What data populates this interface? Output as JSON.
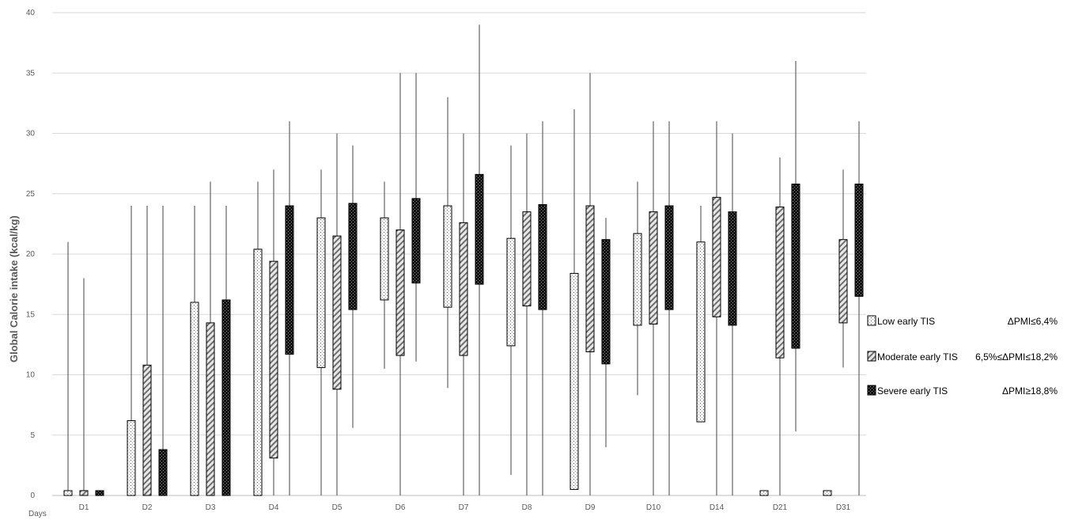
{
  "chart_data": {
    "type": "boxplot",
    "ylabel": "Global Calorie intake (kcal/kg)",
    "xlabel": "Days",
    "ylim": [
      0,
      40
    ],
    "y_ticks": [
      0,
      5,
      10,
      15,
      20,
      25,
      30,
      35,
      40
    ],
    "grid": true,
    "legend_position": "right",
    "categories": [
      "D1",
      "D2",
      "D3",
      "D4",
      "D5",
      "D6",
      "D7",
      "D8",
      "D9",
      "D10",
      "D14",
      "D21",
      "D31"
    ],
    "series": [
      {
        "name": "Low early TIS",
        "range_label": "ΔPMI≤6,4%",
        "pattern": "dots",
        "boxes": [
          {
            "min": 0,
            "q1": 0,
            "q3": 0.4,
            "max": 21
          },
          {
            "min": 0,
            "q1": 0,
            "q3": 6.2,
            "max": 24
          },
          {
            "min": 0,
            "q1": 0,
            "q3": 16,
            "max": 24
          },
          {
            "min": 0,
            "q1": 0,
            "q3": 20.4,
            "max": 26
          },
          {
            "min": 0,
            "q1": 10.6,
            "q3": 23,
            "max": 27
          },
          {
            "min": 10.5,
            "q1": 16.2,
            "q3": 23,
            "max": 26
          },
          {
            "min": 8.9,
            "q1": 15.6,
            "q3": 24,
            "max": 33
          },
          {
            "min": 1.7,
            "q1": 12.4,
            "q3": 21.3,
            "max": 29
          },
          {
            "min": 0.5,
            "q1": 0.5,
            "q3": 18.4,
            "max": 32
          },
          {
            "min": 8.3,
            "q1": 14.1,
            "q3": 21.7,
            "max": 26
          },
          {
            "min": 6.1,
            "q1": 6.1,
            "q3": 21,
            "max": 24
          },
          {
            "min": 0,
            "q1": 0,
            "q3": 0.4,
            "max": 0.4
          },
          {
            "min": 0,
            "q1": 0,
            "q3": 0.4,
            "max": 0.4
          }
        ]
      },
      {
        "name": "Moderate early TIS",
        "range_label": "6,5%≤ΔPMI≤18,2%",
        "pattern": "diagonal",
        "boxes": [
          {
            "min": 0,
            "q1": 0,
            "q3": 0.4,
            "max": 18
          },
          {
            "min": 0,
            "q1": 0,
            "q3": 10.8,
            "max": 24
          },
          {
            "min": 0,
            "q1": 0,
            "q3": 14.3,
            "max": 26
          },
          {
            "min": 0,
            "q1": 3.1,
            "q3": 19.4,
            "max": 27
          },
          {
            "min": 0,
            "q1": 8.8,
            "q3": 21.5,
            "max": 30
          },
          {
            "min": 0,
            "q1": 11.6,
            "q3": 22,
            "max": 35
          },
          {
            "min": 0,
            "q1": 11.6,
            "q3": 22.6,
            "max": 30
          },
          {
            "min": 0,
            "q1": 15.7,
            "q3": 23.5,
            "max": 30
          },
          {
            "min": 0,
            "q1": 11.9,
            "q3": 24,
            "max": 35
          },
          {
            "min": 0,
            "q1": 14.2,
            "q3": 23.5,
            "max": 31
          },
          {
            "min": 0,
            "q1": 14.8,
            "q3": 24.7,
            "max": 31
          },
          {
            "min": 0,
            "q1": 11.4,
            "q3": 23.9,
            "max": 28
          },
          {
            "min": 10.6,
            "q1": 14.3,
            "q3": 21.2,
            "max": 27
          }
        ]
      },
      {
        "name": "Severe early TIS",
        "range_label": "ΔPMI≥18,8%",
        "pattern": "checker",
        "boxes": [
          {
            "min": 0,
            "q1": 0,
            "q3": 0.4,
            "max": 0.4
          },
          {
            "min": 0,
            "q1": 0,
            "q3": 3.8,
            "max": 24
          },
          {
            "min": 0,
            "q1": 0,
            "q3": 16.2,
            "max": 24
          },
          {
            "min": 0,
            "q1": 11.7,
            "q3": 24,
            "max": 31
          },
          {
            "min": 5.6,
            "q1": 15.4,
            "q3": 24.2,
            "max": 29
          },
          {
            "min": 11.1,
            "q1": 17.6,
            "q3": 24.6,
            "max": 35
          },
          {
            "min": 0,
            "q1": 17.5,
            "q3": 26.6,
            "max": 39
          },
          {
            "min": 0,
            "q1": 15.4,
            "q3": 24.1,
            "max": 31
          },
          {
            "min": 4,
            "q1": 10.9,
            "q3": 21.2,
            "max": 23
          },
          {
            "min": 0,
            "q1": 15.4,
            "q3": 24,
            "max": 31
          },
          {
            "min": 0,
            "q1": 14.1,
            "q3": 23.5,
            "max": 30
          },
          {
            "min": 5.3,
            "q1": 12.2,
            "q3": 25.8,
            "max": 36
          },
          {
            "min": 0,
            "q1": 16.5,
            "q3": 25.8,
            "max": 31
          }
        ]
      }
    ]
  }
}
